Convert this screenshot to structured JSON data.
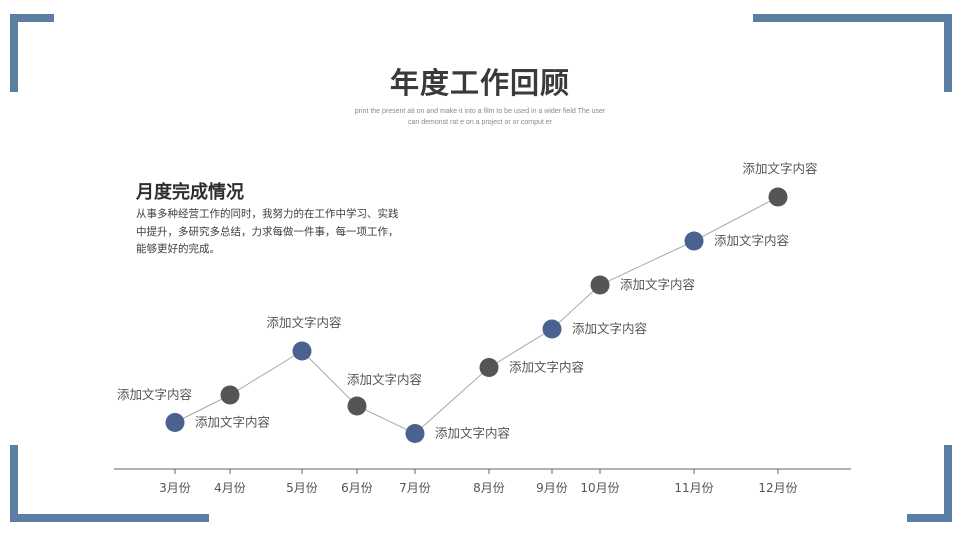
{
  "header": {
    "title": "年度工作回顾",
    "subtitle_lines": [
      "print the present ati on and make it into a film to be used in a wider field The user",
      "can demonst rat e on a project or or comput er"
    ]
  },
  "section": {
    "title": "月度完成情况",
    "body_lines": [
      "从事多种经营工作的同时，我努力的在工作中学习、实践",
      "中提升，多研究多总结，力求每做一件事，每一项工作，",
      "能够更好的完成。"
    ]
  },
  "colors": {
    "frame": "#5b7fa3",
    "point_blue": "#4a628f",
    "point_dark": "#555555",
    "line": "#a8a8a8",
    "axis": "#666666",
    "text": "#555555"
  },
  "chart_data": {
    "type": "line",
    "title": "",
    "xlabel": "",
    "ylabel": "",
    "grid": false,
    "points": [
      {
        "month": "3月份",
        "x": 3,
        "y": 0.5,
        "label": "添加文字内容",
        "label_side": "right",
        "color": "blue"
      },
      {
        "month": "4月份",
        "x": 4,
        "y": 1.0,
        "label": "添加文字内容",
        "label_side": "left",
        "color": "dark"
      },
      {
        "month": "5月份",
        "x": 5,
        "y": 1.8,
        "label": "添加文字内容",
        "label_side": "top",
        "color": "blue"
      },
      {
        "month": "6月份",
        "x": 6,
        "y": 0.8,
        "label": "添加文字内容",
        "label_side": "top-right",
        "color": "dark"
      },
      {
        "month": "7月份",
        "x": 7,
        "y": 0.3,
        "label": "添加文字内容",
        "label_side": "right",
        "color": "blue"
      },
      {
        "month": "8月份",
        "x": 8,
        "y": 1.5,
        "label": "添加文字内容",
        "label_side": "right",
        "color": "dark"
      },
      {
        "month": "9月份",
        "x": 9,
        "y": 2.2,
        "label": "添加文字内容",
        "label_side": "right",
        "color": "blue"
      },
      {
        "month": "10月份",
        "x": 10,
        "y": 3.0,
        "label": "添加文字内容",
        "label_side": "right",
        "color": "dark"
      },
      {
        "month": "11月份",
        "x": 11,
        "y": 3.8,
        "label": "添加文字内容",
        "label_side": "right",
        "color": "blue"
      },
      {
        "month": "12月份",
        "x": 12,
        "y": 4.6,
        "label": "添加文字内容",
        "label_side": "top",
        "color": "dark"
      }
    ]
  }
}
